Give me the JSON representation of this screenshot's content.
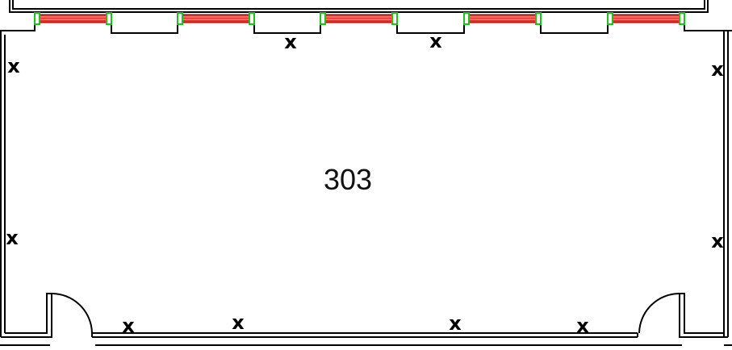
{
  "floor_plan": {
    "room": {
      "number": "303"
    },
    "outlet_mark": "x",
    "windows": 5,
    "doors": 2,
    "colors": {
      "wall": "#000000",
      "window_glass": "#e8302a",
      "window_frame": "#20c020",
      "background": "#ffffff"
    }
  }
}
